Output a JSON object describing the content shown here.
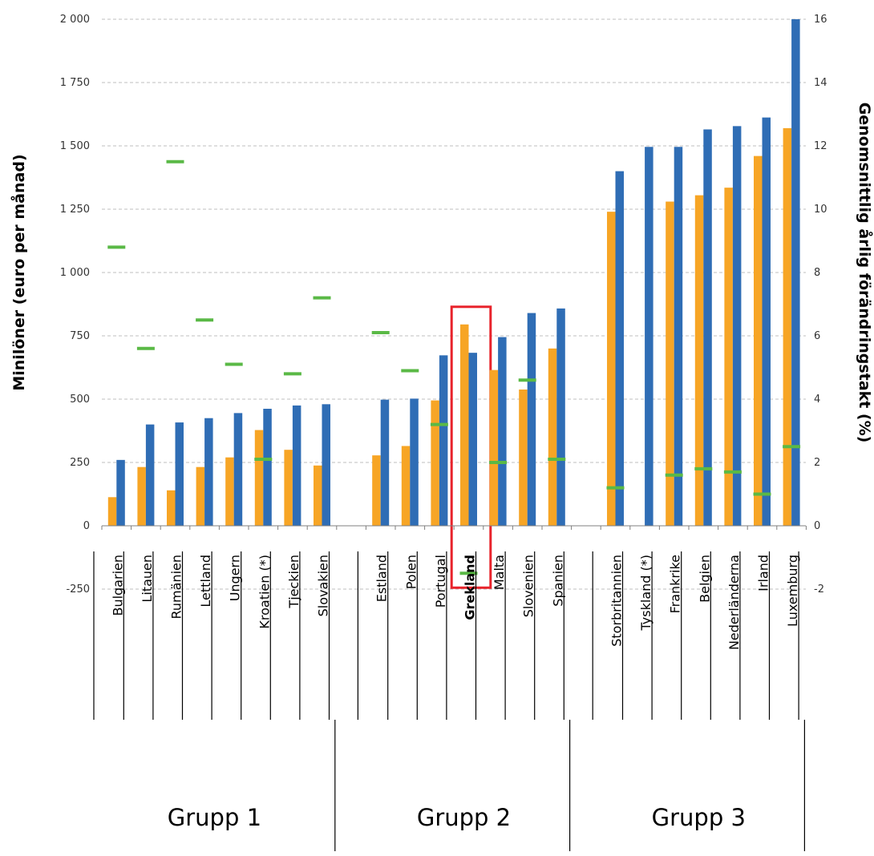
{
  "chart_data": {
    "type": "bar",
    "xlabel": "",
    "ylabel": "Minilöner (euro per månad)",
    "y2label": "Genomsnittlig årlig förändringstakt (%)",
    "ylim": [
      -250,
      2000
    ],
    "y2lim": [
      -2,
      16
    ],
    "y_ticks": [
      -250,
      0,
      250,
      500,
      750,
      1000,
      1250,
      1500,
      1750,
      2000
    ],
    "y_tick_labels": [
      "-250",
      "0",
      "250",
      "500",
      "750",
      "1 000",
      "1 250",
      "1 500",
      "1 750",
      "2 000"
    ],
    "y2_ticks": [
      -2,
      0,
      2,
      4,
      6,
      8,
      10,
      12,
      14,
      16
    ],
    "y2_tick_labels": [
      "-2",
      "0",
      "2",
      "4",
      "6",
      "8",
      "10",
      "12",
      "14",
      "16"
    ],
    "grid": true,
    "legend": "none",
    "highlight": "Grekland",
    "groups": [
      {
        "name": "Grupp 1",
        "categories": [
          "Bulgarien",
          "Litauen",
          "Rumänien",
          "Lettland",
          "Ungern",
          "Kroatien (*)",
          "Tjeckien",
          "Slovakien"
        ],
        "orange": [
          113,
          232,
          140,
          232,
          270,
          378,
          300,
          238
        ],
        "blue": [
          260,
          400,
          408,
          425,
          445,
          462,
          475,
          480
        ],
        "rate": [
          8.8,
          5.6,
          11.5,
          6.5,
          5.1,
          2.1,
          4.8,
          7.2
        ]
      },
      {
        "name": "Grupp 2",
        "categories": [
          "Estland",
          "Polen",
          "Portugal",
          "Grekland",
          "Malta",
          "Slovenien",
          "Spanien"
        ],
        "orange": [
          278,
          315,
          495,
          795,
          615,
          538,
          700
        ],
        "blue": [
          498,
          502,
          673,
          683,
          745,
          840,
          858
        ],
        "rate": [
          6.1,
          4.9,
          3.2,
          -1.5,
          2.0,
          4.6,
          2.1
        ]
      },
      {
        "name": "Grupp 3",
        "categories": [
          "Storbritannien",
          "Tyskland (*)",
          "Frankrike",
          "Belgien",
          "Nederländerna",
          "Irland",
          "Luxemburg"
        ],
        "orange": [
          1240,
          null,
          1280,
          1305,
          1335,
          1460,
          1570
        ],
        "blue": [
          1400,
          1496,
          1496,
          1565,
          1578,
          1612,
          2000
        ],
        "rate": [
          1.2,
          null,
          1.6,
          1.8,
          1.7,
          1.0,
          2.5
        ]
      }
    ],
    "colors": {
      "orange": "#f7a525",
      "blue": "#2f6db5",
      "rate": "#5ab946",
      "highlight_box": "#e8232b",
      "grid": "#bfbfbf"
    }
  }
}
